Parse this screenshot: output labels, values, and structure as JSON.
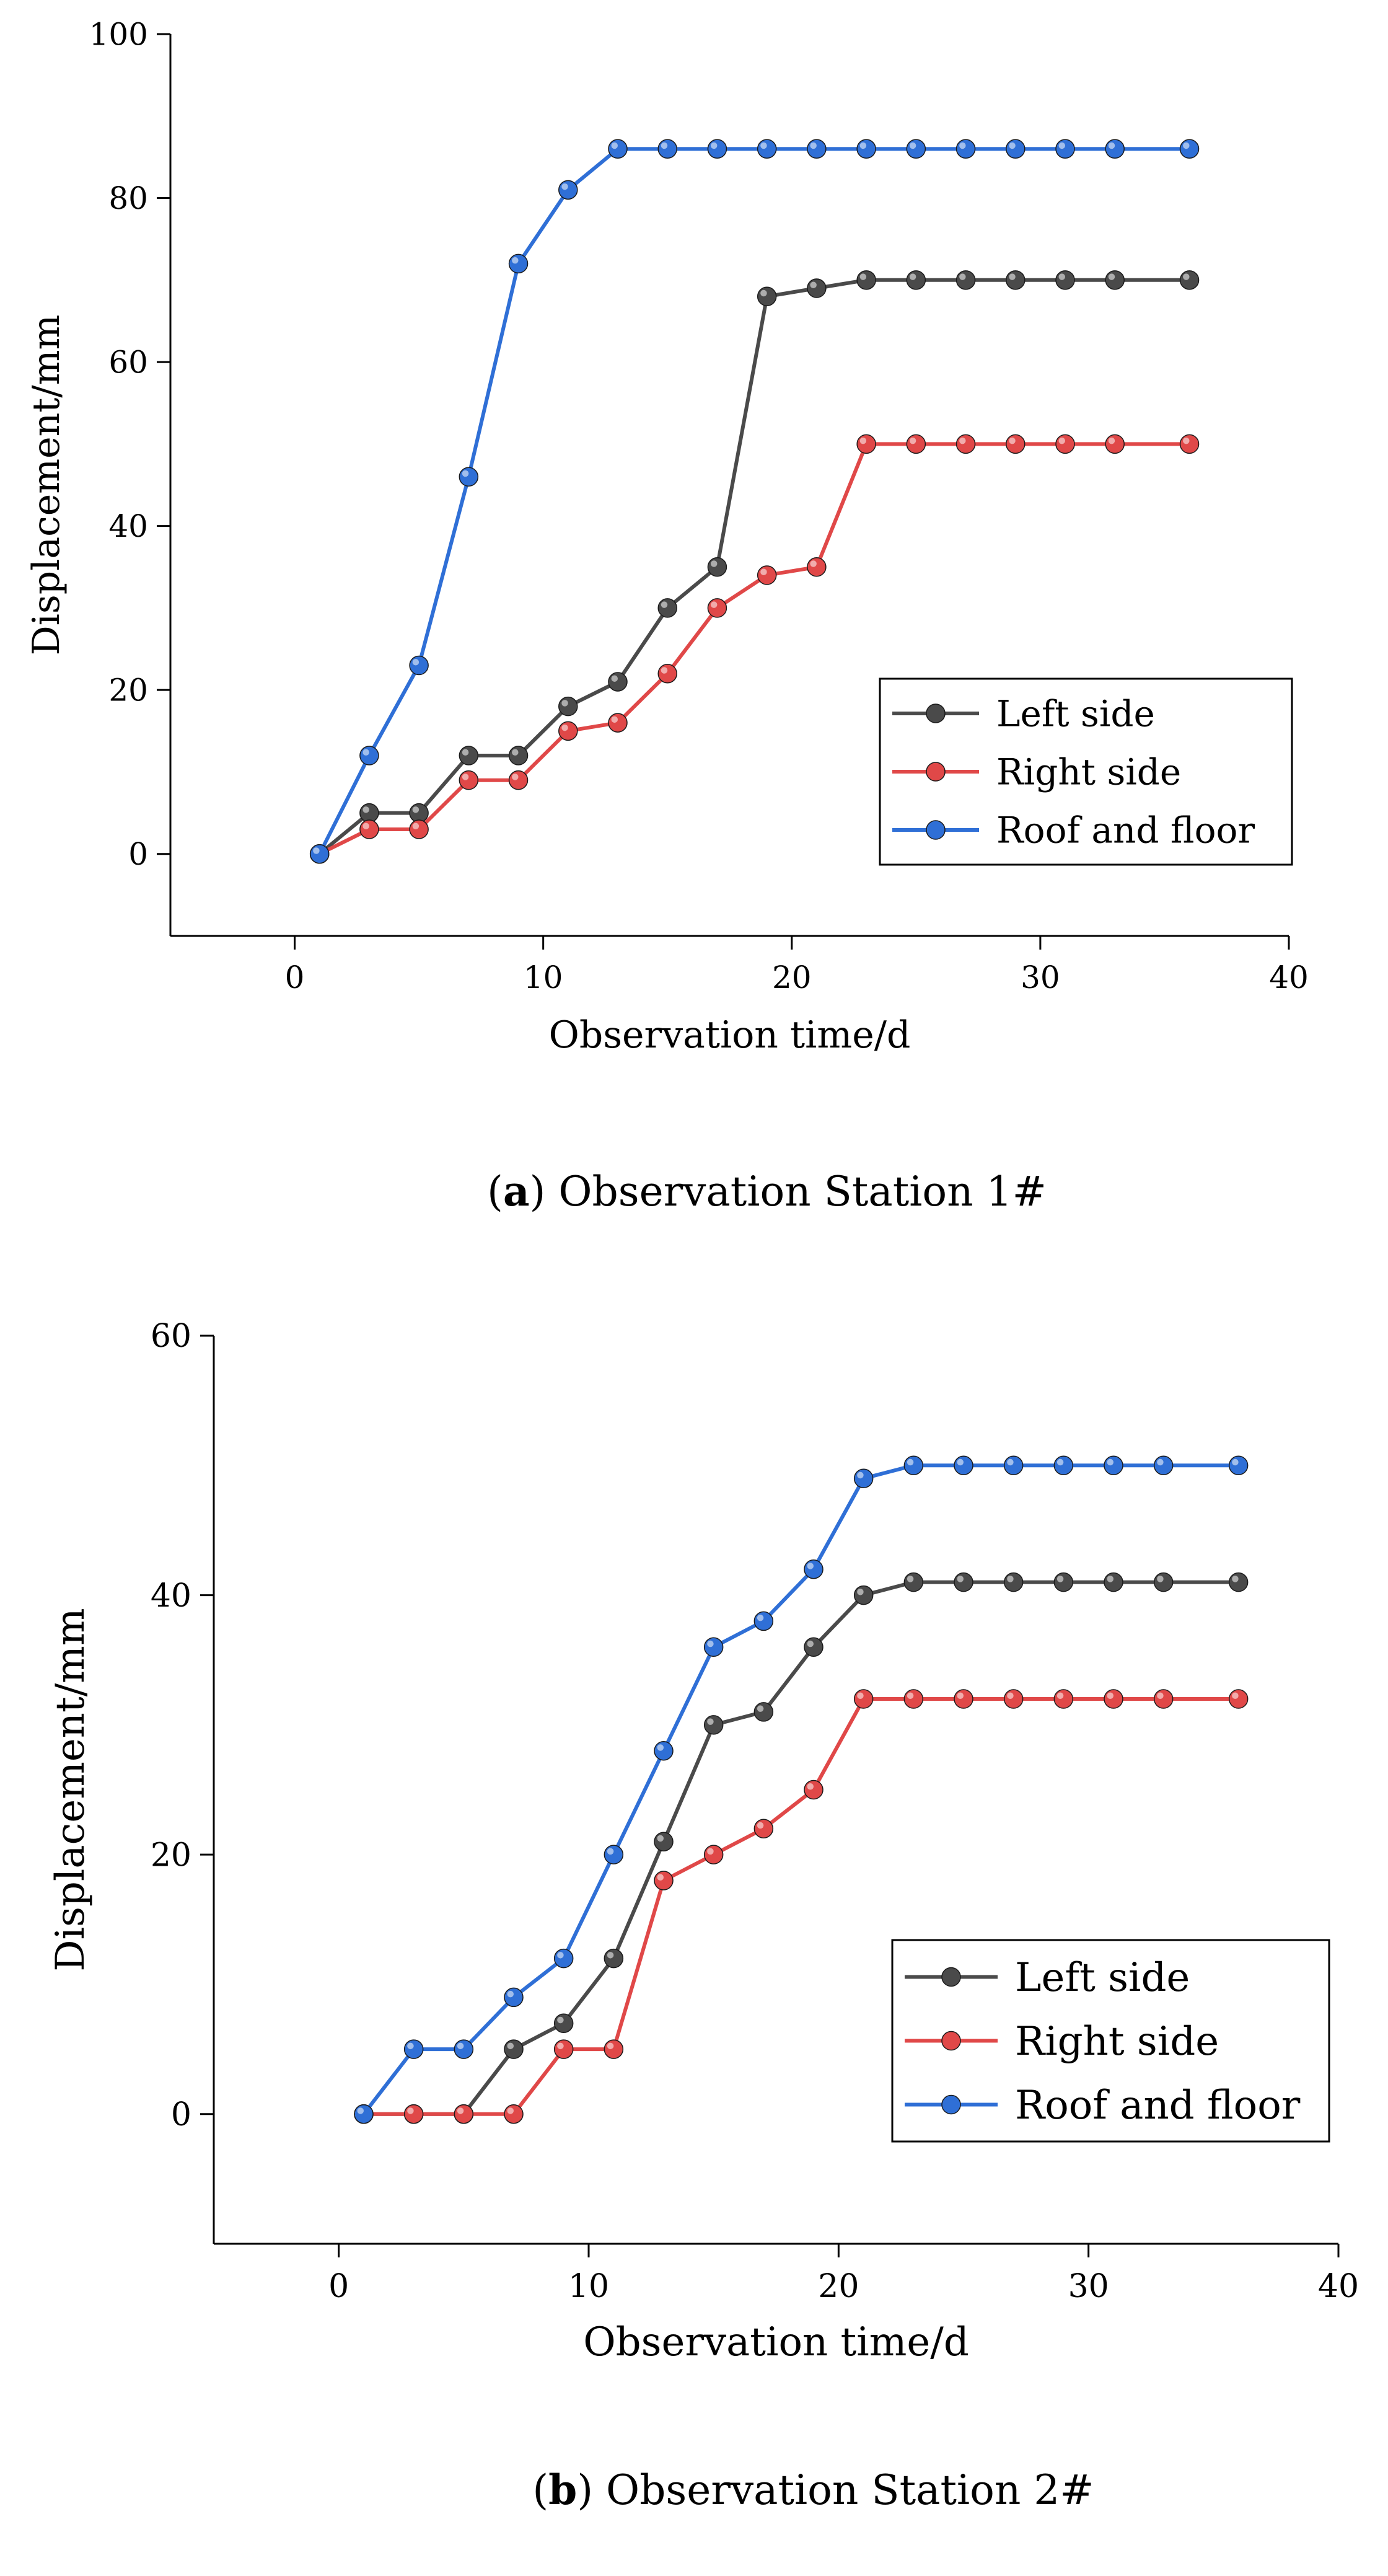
{
  "charts": [
    {
      "caption": {
        "prefix": "(",
        "letter": "a",
        "suffix": ") Observation Station 1#"
      },
      "chart_data": {
        "type": "line",
        "title": "",
        "xlabel": "Observation time/d",
        "ylabel": "Displacement/mm",
        "xlim": [
          -5,
          40
        ],
        "ylim": [
          -10,
          100
        ],
        "xticks": [
          0,
          10,
          20,
          30,
          40
        ],
        "yticks": [
          0,
          20,
          40,
          60,
          80,
          100
        ],
        "grid": false,
        "legend_position": "bottom-right",
        "x": [
          1,
          3,
          5,
          7,
          9,
          11,
          13,
          15,
          17,
          19,
          21,
          23,
          25,
          27,
          29,
          31,
          33,
          36
        ],
        "series": [
          {
            "name": "Left side",
            "color": "#4a4a4a",
            "values": [
              0,
              5,
              5,
              12,
              12,
              18,
              21,
              30,
              35,
              68,
              69,
              70,
              70,
              70,
              70,
              70,
              70,
              70
            ]
          },
          {
            "name": "Right side",
            "color": "#e04848",
            "values": [
              0,
              3,
              3,
              9,
              9,
              15,
              16,
              22,
              30,
              34,
              35,
              50,
              50,
              50,
              50,
              50,
              50,
              50
            ]
          },
          {
            "name": "Roof and floor",
            "color": "#2f6fd6",
            "values": [
              0,
              12,
              23,
              46,
              72,
              81,
              86,
              86,
              86,
              86,
              86,
              86,
              86,
              86,
              86,
              86,
              86,
              86
            ]
          }
        ]
      }
    },
    {
      "caption": {
        "prefix": "(",
        "letter": "b",
        "suffix": ") Observation Station 2#"
      },
      "chart_data": {
        "type": "line",
        "title": "",
        "xlabel": "Observation time/d",
        "ylabel": "Displacement/mm",
        "xlim": [
          -5,
          40
        ],
        "ylim": [
          -10,
          60
        ],
        "xticks": [
          0,
          10,
          20,
          30,
          40
        ],
        "yticks": [
          0,
          20,
          40,
          60
        ],
        "grid": false,
        "legend_position": "bottom-right",
        "x": [
          1,
          3,
          5,
          7,
          9,
          11,
          13,
          15,
          17,
          19,
          21,
          23,
          25,
          27,
          29,
          31,
          33,
          36
        ],
        "series": [
          {
            "name": "Left side",
            "color": "#4a4a4a",
            "values": [
              0,
              0,
              0,
              5,
              7,
              12,
              21,
              30,
              31,
              36,
              40,
              41,
              41,
              41,
              41,
              41,
              41,
              41
            ]
          },
          {
            "name": "Right side",
            "color": "#e04848",
            "values": [
              0,
              0,
              0,
              0,
              5,
              5,
              18,
              20,
              22,
              25,
              32,
              32,
              32,
              32,
              32,
              32,
              32,
              32
            ]
          },
          {
            "name": "Roof and floor",
            "color": "#2f6fd6",
            "values": [
              0,
              5,
              5,
              9,
              12,
              20,
              28,
              36,
              38,
              42,
              49,
              50,
              50,
              50,
              50,
              50,
              50,
              50
            ]
          }
        ]
      }
    }
  ]
}
